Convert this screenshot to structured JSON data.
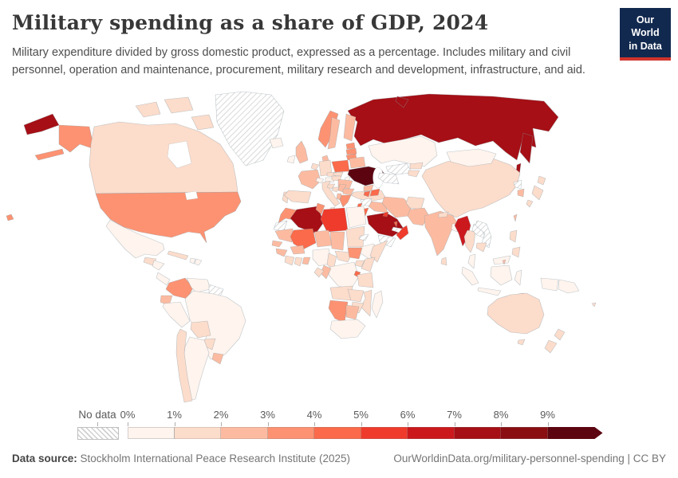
{
  "header": {
    "title": "Military spending as a share of GDP, 2024",
    "subtitle": "Military expenditure divided by gross domestic product, expressed as a percentage. Includes military and civil personnel, operation and maintenance, procurement, military research and development, infrastructure, and aid.",
    "logo": {
      "line1": "Our World",
      "line2": "in Data",
      "bg_color": "#12294f",
      "accent_color": "#d0342c"
    }
  },
  "legend": {
    "no_data_label": "No data",
    "tick_labels": [
      "0%",
      "1%",
      "2%",
      "3%",
      "4%",
      "5%",
      "6%",
      "7%",
      "8%",
      "9%"
    ]
  },
  "footer": {
    "source_label": "Data source:",
    "source_text": " Stockholm International Peace Research Institute (2025)",
    "credit": "OurWorldinData.org/military-personnel-spending | CC BY"
  },
  "chart_data": {
    "type": "choropleth",
    "title": "Military spending as a share of GDP, 2024",
    "unit": "% of GDP",
    "year": 2024,
    "legend_position": "bottom",
    "palette": [
      "#fff4ee",
      "#fcdccb",
      "#fcbba1",
      "#fc9272",
      "#fb6a4a",
      "#ef3b2c",
      "#cb181d",
      "#a50f15",
      "#8a0d12",
      "#5c0511"
    ],
    "bin_labels": [
      "0–1%",
      "1–2%",
      "2–3%",
      "3–4%",
      "4–5%",
      "5–6%",
      "6–7%",
      "7–8%",
      "8–9%",
      "9%+"
    ],
    "no_data_style": "gray-diagonal-hatch",
    "countries": [
      {
        "name": "United States",
        "bin": 3
      },
      {
        "name": "Canada",
        "bin": 1
      },
      {
        "name": "Mexico",
        "bin": 0
      },
      {
        "name": "Guatemala",
        "bin": 1
      },
      {
        "name": "Honduras",
        "bin": 0
      },
      {
        "name": "Panama",
        "bin": 0
      },
      {
        "name": "Cuba",
        "bin": 1
      },
      {
        "name": "Haiti",
        "bin": 0
      },
      {
        "name": "Dominican Republic",
        "bin": 0
      },
      {
        "name": "Greenland",
        "bin": "no-data"
      },
      {
        "name": "Iceland",
        "bin": 0
      },
      {
        "name": "Colombia",
        "bin": 3
      },
      {
        "name": "Venezuela",
        "bin": 0
      },
      {
        "name": "Guyana",
        "bin": "no-data"
      },
      {
        "name": "Ecuador",
        "bin": 2
      },
      {
        "name": "Peru",
        "bin": 0
      },
      {
        "name": "Brazil",
        "bin": 0
      },
      {
        "name": "Bolivia",
        "bin": 1
      },
      {
        "name": "Paraguay",
        "bin": 1
      },
      {
        "name": "Uruguay",
        "bin": 2
      },
      {
        "name": "Argentina",
        "bin": 0
      },
      {
        "name": "Chile",
        "bin": 1
      },
      {
        "name": "Norway",
        "bin": 3
      },
      {
        "name": "Sweden",
        "bin": 2
      },
      {
        "name": "Finland",
        "bin": 2
      },
      {
        "name": "Denmark",
        "bin": 2
      },
      {
        "name": "United Kingdom",
        "bin": 2
      },
      {
        "name": "Ireland",
        "bin": 0
      },
      {
        "name": "Netherlands",
        "bin": 1
      },
      {
        "name": "Germany",
        "bin": 1
      },
      {
        "name": "France",
        "bin": 2
      },
      {
        "name": "Portugal",
        "bin": 1
      },
      {
        "name": "Spain",
        "bin": 1
      },
      {
        "name": "Switzerland",
        "bin": 0
      },
      {
        "name": "Czechia",
        "bin": 1
      },
      {
        "name": "Austria",
        "bin": 0
      },
      {
        "name": "Italy",
        "bin": 1
      },
      {
        "name": "Poland",
        "bin": 4
      },
      {
        "name": "Estonia",
        "bin": 3
      },
      {
        "name": "Latvia",
        "bin": 3
      },
      {
        "name": "Lithuania",
        "bin": 3
      },
      {
        "name": "Belarus",
        "bin": 2
      },
      {
        "name": "Ukraine",
        "bin": 9
      },
      {
        "name": "Moldova",
        "bin": 0
      },
      {
        "name": "Hungary",
        "bin": 1
      },
      {
        "name": "Slovakia",
        "bin": 1
      },
      {
        "name": "Romania",
        "bin": 2
      },
      {
        "name": "Croatia",
        "bin": 1
      },
      {
        "name": "Bosnia and Herzegovina",
        "bin": 1
      },
      {
        "name": "Serbia",
        "bin": 2
      },
      {
        "name": "Bulgaria",
        "bin": 2
      },
      {
        "name": "Albania",
        "bin": 2
      },
      {
        "name": "Greece",
        "bin": 3
      },
      {
        "name": "Turkey",
        "bin": 1
      },
      {
        "name": "Russia",
        "bin": 7
      },
      {
        "name": "Kazakhstan",
        "bin": 0
      },
      {
        "name": "Georgia",
        "bin": 2
      },
      {
        "name": "Armenia",
        "bin": 4
      },
      {
        "name": "Azerbaijan",
        "bin": 4
      },
      {
        "name": "Uzbekistan",
        "bin": "no-data"
      },
      {
        "name": "Turkmenistan",
        "bin": "no-data"
      },
      {
        "name": "Kyrgyzstan",
        "bin": 1
      },
      {
        "name": "Tajikistan",
        "bin": 1
      },
      {
        "name": "Syria",
        "bin": "no-data"
      },
      {
        "name": "Lebanon",
        "bin": 4
      },
      {
        "name": "Israel",
        "bin": 8
      },
      {
        "name": "Jordan",
        "bin": 4
      },
      {
        "name": "Iraq",
        "bin": 2
      },
      {
        "name": "Saudi Arabia",
        "bin": 7
      },
      {
        "name": "Yemen",
        "bin": "no-data"
      },
      {
        "name": "Oman",
        "bin": 5
      },
      {
        "name": "United Arab Emirates",
        "bin": "no-data"
      },
      {
        "name": "Qatar",
        "bin": 4
      },
      {
        "name": "Kuwait",
        "bin": 5
      },
      {
        "name": "Iran",
        "bin": 2
      },
      {
        "name": "Afghanistan",
        "bin": 1
      },
      {
        "name": "Pakistan",
        "bin": 2
      },
      {
        "name": "China",
        "bin": 1
      },
      {
        "name": "Mongolia",
        "bin": 0
      },
      {
        "name": "India",
        "bin": 2
      },
      {
        "name": "Nepal",
        "bin": 1
      },
      {
        "name": "Bangladesh",
        "bin": 0
      },
      {
        "name": "Sri Lanka",
        "bin": 1
      },
      {
        "name": "North Korea",
        "bin": "no-data"
      },
      {
        "name": "South Korea",
        "bin": 2
      },
      {
        "name": "Japan",
        "bin": 1
      },
      {
        "name": "Taiwan",
        "bin": 2
      },
      {
        "name": "Myanmar",
        "bin": 6
      },
      {
        "name": "Thailand",
        "bin": 1
      },
      {
        "name": "Laos",
        "bin": "no-data"
      },
      {
        "name": "Vietnam",
        "bin": "no-data"
      },
      {
        "name": "Cambodia",
        "bin": 1
      },
      {
        "name": "Malaysia",
        "bin": 0
      },
      {
        "name": "Brunei",
        "bin": 2
      },
      {
        "name": "Indonesia",
        "bin": 0
      },
      {
        "name": "Philippines",
        "bin": 1
      },
      {
        "name": "Papua New Guinea",
        "bin": 0
      },
      {
        "name": "Timor-Leste",
        "bin": 4
      },
      {
        "name": "Morocco",
        "bin": 3
      },
      {
        "name": "Western Sahara",
        "bin": "no-data"
      },
      {
        "name": "Algeria",
        "bin": 7
      },
      {
        "name": "Tunisia",
        "bin": 3
      },
      {
        "name": "Libya",
        "bin": 5
      },
      {
        "name": "Egypt",
        "bin": 0
      },
      {
        "name": "Mauritania",
        "bin": 2
      },
      {
        "name": "Mali",
        "bin": 4
      },
      {
        "name": "Niger",
        "bin": 2
      },
      {
        "name": "Chad",
        "bin": 2
      },
      {
        "name": "Sudan",
        "bin": 1
      },
      {
        "name": "Eritrea",
        "bin": "no-data"
      },
      {
        "name": "Ethiopia",
        "bin": 0
      },
      {
        "name": "Somalia",
        "bin": 1
      },
      {
        "name": "Senegal",
        "bin": 2
      },
      {
        "name": "Guinea",
        "bin": 2
      },
      {
        "name": "Ivory Coast",
        "bin": 1
      },
      {
        "name": "Ghana",
        "bin": 1
      },
      {
        "name": "Togo",
        "bin": 2
      },
      {
        "name": "Burkina Faso",
        "bin": 2
      },
      {
        "name": "Nigeria",
        "bin": 0
      },
      {
        "name": "Cameroon",
        "bin": 1
      },
      {
        "name": "Central African Republic",
        "bin": 1
      },
      {
        "name": "South Sudan",
        "bin": 3
      },
      {
        "name": "Uganda",
        "bin": 1
      },
      {
        "name": "Kenya",
        "bin": 1
      },
      {
        "name": "DR Congo",
        "bin": 0
      },
      {
        "name": "Congo",
        "bin": 2
      },
      {
        "name": "Gabon",
        "bin": 1
      },
      {
        "name": "Burundi",
        "bin": 4
      },
      {
        "name": "Tanzania",
        "bin": 1
      },
      {
        "name": "Angola",
        "bin": 1
      },
      {
        "name": "Zambia",
        "bin": 1
      },
      {
        "name": "Mozambique",
        "bin": 1
      },
      {
        "name": "Zimbabwe",
        "bin": 1
      },
      {
        "name": "Namibia",
        "bin": 3
      },
      {
        "name": "Botswana",
        "bin": 2
      },
      {
        "name": "South Africa",
        "bin": 0
      },
      {
        "name": "Madagascar",
        "bin": 0
      },
      {
        "name": "Australia",
        "bin": 1
      },
      {
        "name": "New Zealand",
        "bin": 1
      },
      {
        "name": "Fiji",
        "bin": 1
      }
    ]
  }
}
